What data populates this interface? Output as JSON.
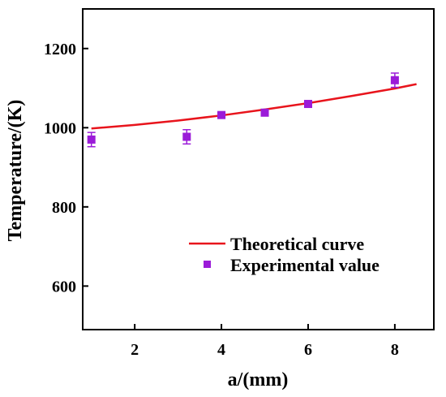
{
  "chart_data": {
    "type": "scatter",
    "xlabel": "a/(mm)",
    "ylabel": "Temperature/(K)",
    "xlim": [
      0.8,
      8.9
    ],
    "ylim": [
      490,
      1300
    ],
    "x_ticks": [
      2,
      4,
      6,
      8
    ],
    "y_ticks": [
      600,
      800,
      1000,
      1200
    ],
    "x_tick_labels": [
      "2",
      "4",
      "6",
      "8"
    ],
    "y_tick_labels": [
      "600",
      "800",
      "1000",
      "1200"
    ],
    "legend_position": "bottom-right",
    "series": [
      {
        "name": "Theoretical curve",
        "kind": "line",
        "color": "#e8141c",
        "x": [
          1.0,
          2.0,
          3.0,
          4.0,
          5.0,
          6.0,
          7.0,
          8.0,
          8.5
        ],
        "y": [
          998,
          1007,
          1018,
          1031,
          1046,
          1062,
          1080,
          1099,
          1110
        ]
      },
      {
        "name": "Experimental value",
        "kind": "scatter",
        "color": "#9b1bd8",
        "x": [
          1.0,
          3.2,
          4.0,
          5.0,
          6.0,
          8.0
        ],
        "y": [
          970,
          977,
          1032,
          1038,
          1060,
          1120
        ],
        "error": [
          18,
          18,
          6,
          8,
          6,
          18
        ]
      }
    ]
  }
}
